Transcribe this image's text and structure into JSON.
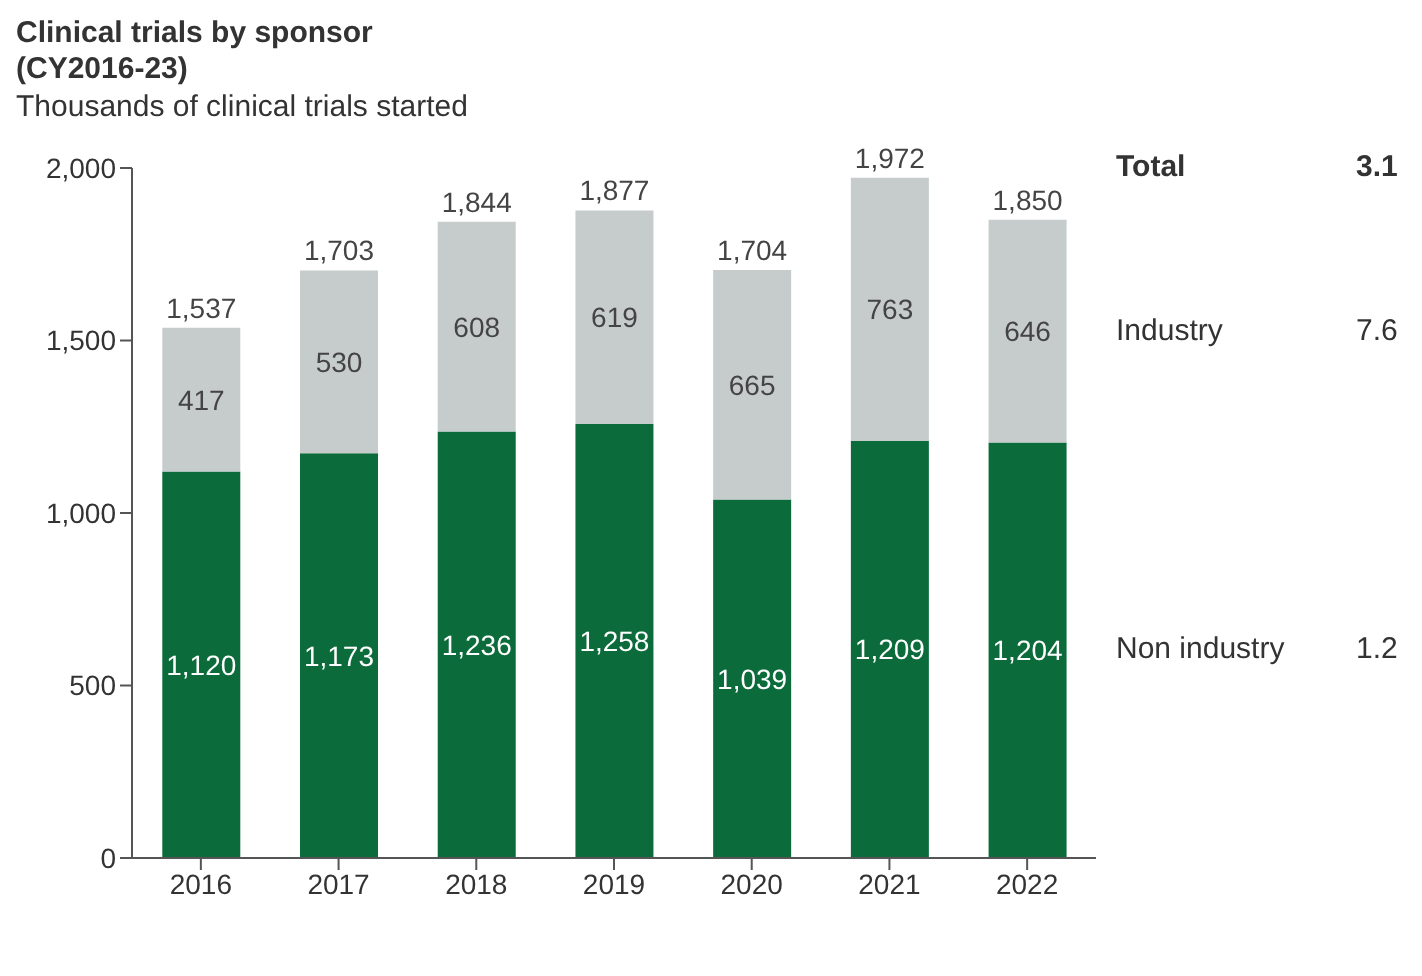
{
  "chart_data": {
    "type": "bar",
    "title": "Clinical trials by sponsor\n(CY2016-23)",
    "subtitle": "Thousands of clinical trials started",
    "categories": [
      "2016",
      "2017",
      "2018",
      "2019",
      "2020",
      "2021",
      "2022"
    ],
    "series": [
      {
        "name": "Non industry",
        "color": "#0b6b3a",
        "values": [
          1120,
          1173,
          1236,
          1258,
          1039,
          1209,
          1204
        ],
        "value_labels": [
          "1,120",
          "1,173",
          "1,236",
          "1,258",
          "1,039",
          "1,209",
          "1,204"
        ]
      },
      {
        "name": "Industry",
        "color": "#c6cccb",
        "values": [
          417,
          530,
          608,
          619,
          665,
          763,
          646
        ],
        "value_labels": [
          "417",
          "530",
          "608",
          "619",
          "665",
          "763",
          "646"
        ]
      }
    ],
    "stacked": true,
    "totals": [
      "1,537",
      "1,703",
      "1,844",
      "1,877",
      "1,704",
      "1,972",
      "1,850"
    ],
    "ylim": [
      0,
      2000
    ],
    "yticks": [
      0,
      {
        "value": 500,
        "label": "500"
      },
      {
        "value": 1000,
        "label": "1,000"
      },
      {
        "value": 1500,
        "label": "1,500"
      },
      {
        "value": 2000,
        "label": "2,000"
      }
    ],
    "legend": "right",
    "annotations": [
      "Total",
      "3.1",
      "1.2",
      "7.6"
    ]
  }
}
